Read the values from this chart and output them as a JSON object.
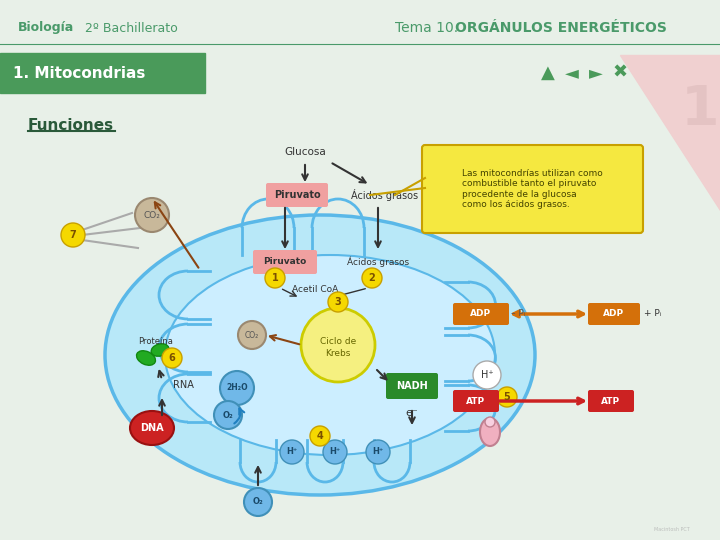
{
  "bg_color": "#e8f0e8",
  "header_text_left1": "Biología",
  "header_text_left2": "2º Bachillerato",
  "header_text_right_normal": "Tema 10. ",
  "header_text_right_bold": "ORGÁNULOS ENERGÉTICOS",
  "header_text_color": "#4a9a6a",
  "banner_bg": "#4a9a5a",
  "banner_text": "1. Mitocondrias",
  "banner_text_color": "#ffffff",
  "section_title": "Funciones",
  "section_title_color": "#2a5a3a",
  "pink_corner_color": "#f0d0d0",
  "callout_bg": "#f5e840",
  "callout_border": "#c8a000",
  "callout_text": "Las mitocondrías utilizan como\ncombustible tanto el piruvato\nprocedente de la glucosa\ncomo los ácidos grasos.",
  "callout_text_color": "#444400",
  "nadh_color": "#2a8a2a",
  "adp_color": "#d4700a",
  "atp_color": "#cc2222",
  "orange_arrow_color": "#d4700a",
  "brown_arrow_color": "#8B4513",
  "mito_outer_fill": "#b8e8f8",
  "mito_outer_edge": "#5ab8e8",
  "mito_inner_fill": "#cceeff",
  "krebs_fill": "#f5f080",
  "krebs_edge": "#cccc00",
  "yellow_circle_fill": "#f5d800",
  "yellow_circle_edge": "#c8a000",
  "yellow_circle_text": "#7a5000",
  "co2_fill": "#c8b89a",
  "co2_edge": "#9a8870",
  "blue_bubble_fill": "#70b8e8",
  "blue_bubble_edge": "#4090b8",
  "blue_bubble_text": "#1a4a6a",
  "piruvato_fill": "#f0a0a0",
  "dna_fill": "#cc2222",
  "protein_fill": "#22aa22",
  "atp_synthase_fill": "#f0b0c0",
  "atp_synthase_edge": "#c08090"
}
